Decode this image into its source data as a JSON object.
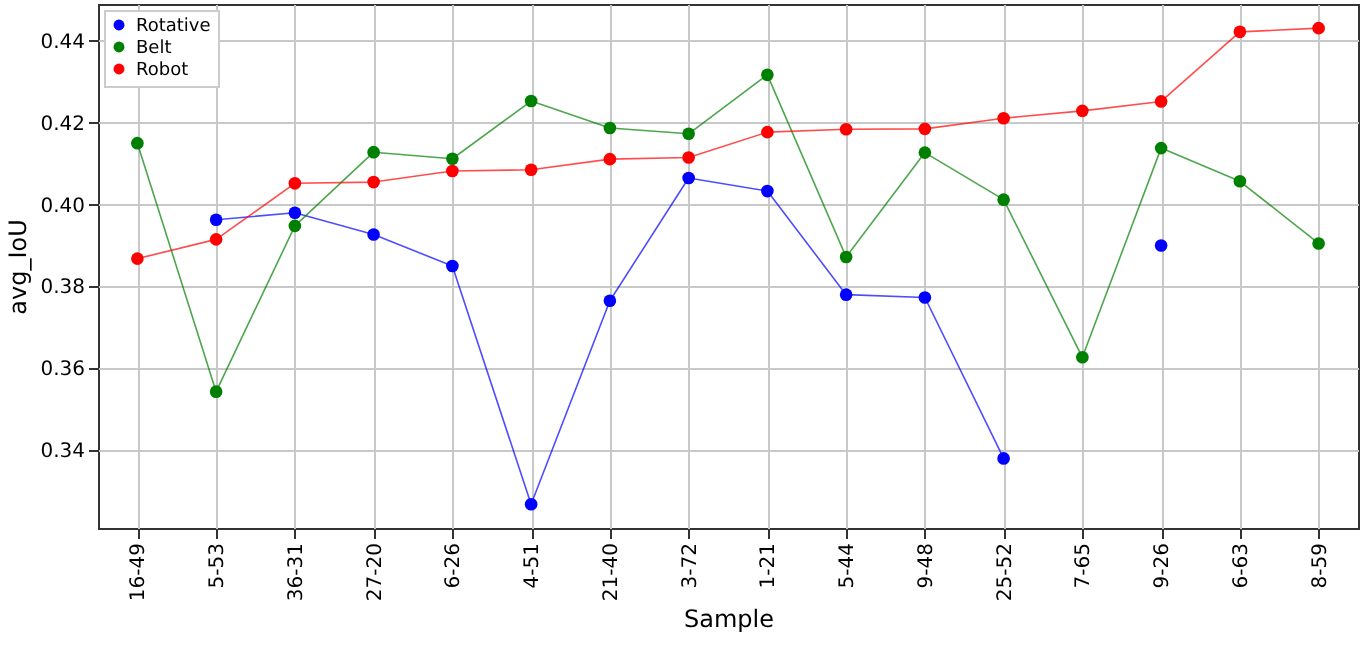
{
  "chart_data": {
    "type": "line",
    "xlabel": "Sample",
    "ylabel": "avg_IoU",
    "categories": [
      "16-49",
      "5-53",
      "36-31",
      "27-20",
      "6-26",
      "4-51",
      "21-40",
      "3-72",
      "1-21",
      "5-44",
      "9-48",
      "25-52",
      "7-65",
      "9-26",
      "6-63",
      "8-59"
    ],
    "series": [
      {
        "name": "Rotative",
        "color": "#0000ff",
        "values": [
          null,
          0.3963,
          0.398,
          0.3927,
          0.385,
          0.3268,
          0.3765,
          0.4065,
          0.4033,
          0.378,
          0.3773,
          0.338,
          null,
          0.39,
          null,
          null
        ]
      },
      {
        "name": "Belt",
        "color": "#008000",
        "values": [
          0.415,
          0.3543,
          0.3948,
          0.4128,
          0.4112,
          0.4253,
          0.4187,
          0.4173,
          0.4317,
          0.3872,
          0.4127,
          0.4012,
          0.3627,
          0.4138,
          0.4057,
          0.3905
        ]
      },
      {
        "name": "Robot",
        "color": "#ff0000",
        "values": [
          0.3868,
          0.3915,
          0.4052,
          0.4055,
          0.4082,
          0.4085,
          0.4111,
          0.4115,
          0.4177,
          0.4184,
          0.4185,
          0.4211,
          0.4229,
          0.4252,
          0.4422,
          0.4431
        ]
      }
    ],
    "ylim": [
      0.321,
      0.449
    ],
    "yticks": [
      0.34,
      0.36,
      0.38,
      {
        "value": 0.4,
        "label": "0.40"
      },
      0.42,
      0.44
    ],
    "grid": true,
    "legend": "top left",
    "marker": "circle",
    "line_style": "solid"
  }
}
